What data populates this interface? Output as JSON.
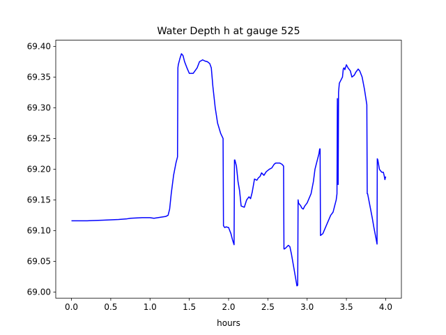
{
  "chart_data": {
    "type": "line",
    "title": "Water Depth h at gauge 525",
    "xlabel": "hours",
    "ylabel": "",
    "xlim": [
      -0.2,
      4.2
    ],
    "ylim": [
      68.99,
      69.41
    ],
    "xticks": [
      0.0,
      0.5,
      1.0,
      1.5,
      2.0,
      2.5,
      3.0,
      3.5,
      4.0
    ],
    "xtick_labels": [
      "0.0",
      "0.5",
      "1.0",
      "1.5",
      "2.0",
      "2.5",
      "3.0",
      "3.5",
      "4.0"
    ],
    "yticks": [
      69.0,
      69.05,
      69.1,
      69.15,
      69.2,
      69.25,
      69.3,
      69.35,
      69.4
    ],
    "ytick_labels": [
      "69.00",
      "69.05",
      "69.10",
      "69.15",
      "69.20",
      "69.25",
      "69.30",
      "69.35",
      "69.40"
    ],
    "grid": false,
    "legend": "none",
    "series": [
      {
        "color": "#0000ff",
        "x": [
          0.0,
          0.2,
          0.4,
          0.6,
          0.7,
          0.75,
          0.9,
          1.0,
          1.05,
          1.1,
          1.15,
          1.2,
          1.23,
          1.25,
          1.27,
          1.3,
          1.33,
          1.35,
          1.355,
          1.36,
          1.38,
          1.4,
          1.42,
          1.44,
          1.47,
          1.5,
          1.55,
          1.6,
          1.63,
          1.67,
          1.7,
          1.73,
          1.76,
          1.78,
          1.8,
          1.83,
          1.86,
          1.9,
          1.93,
          1.935,
          1.95,
          1.97,
          2.0,
          2.03,
          2.05,
          2.07,
          2.075,
          2.08,
          2.1,
          2.12,
          2.14,
          2.16,
          2.2,
          2.23,
          2.26,
          2.28,
          2.3,
          2.33,
          2.36,
          2.38,
          2.4,
          2.42,
          2.45,
          2.48,
          2.5,
          2.52,
          2.55,
          2.58,
          2.6,
          2.62,
          2.65,
          2.68,
          2.7,
          2.705,
          2.71,
          2.73,
          2.76,
          2.78,
          2.8,
          2.83,
          2.85,
          2.87,
          2.88,
          2.885,
          2.89,
          2.92,
          2.93,
          2.95,
          2.97,
          3.0,
          3.05,
          3.08,
          3.1,
          3.13,
          3.15,
          3.16,
          3.165,
          3.17,
          3.2,
          3.25,
          3.3,
          3.33,
          3.35,
          3.37,
          3.38,
          3.385,
          3.39,
          3.395,
          3.4,
          3.403,
          3.41,
          3.43,
          3.45,
          3.46,
          3.47,
          3.48,
          3.5,
          3.52,
          3.55,
          3.57,
          3.6,
          3.62,
          3.65,
          3.67,
          3.7,
          3.73,
          3.76,
          3.765,
          3.77,
          3.8,
          3.83,
          3.85,
          3.88,
          3.89,
          3.893,
          3.9,
          3.92,
          3.93,
          3.95,
          3.97,
          3.98,
          3.99,
          4.0
        ],
        "y": [
          69.116,
          69.116,
          69.117,
          69.118,
          69.119,
          69.12,
          69.121,
          69.121,
          69.12,
          69.121,
          69.122,
          69.123,
          69.125,
          69.135,
          69.16,
          69.19,
          69.21,
          69.22,
          69.365,
          69.37,
          69.38,
          69.388,
          69.385,
          69.375,
          69.365,
          69.356,
          69.356,
          69.365,
          69.375,
          69.378,
          69.376,
          69.375,
          69.372,
          69.365,
          69.335,
          69.3,
          69.275,
          69.258,
          69.25,
          69.108,
          69.105,
          69.106,
          69.105,
          69.095,
          69.085,
          69.077,
          69.215,
          69.215,
          69.205,
          69.18,
          69.165,
          69.14,
          69.138,
          69.15,
          69.155,
          69.152,
          69.162,
          69.184,
          69.182,
          69.186,
          69.188,
          69.194,
          69.19,
          69.196,
          69.198,
          69.2,
          69.202,
          69.208,
          69.21,
          69.21,
          69.21,
          69.208,
          69.205,
          69.07,
          69.07,
          69.072,
          69.076,
          69.074,
          69.062,
          69.04,
          69.025,
          69.01,
          69.011,
          69.15,
          69.145,
          69.14,
          69.137,
          69.135,
          69.14,
          69.145,
          69.16,
          69.18,
          69.2,
          69.215,
          69.225,
          69.233,
          69.233,
          69.092,
          69.095,
          69.11,
          69.125,
          69.13,
          69.14,
          69.15,
          69.16,
          69.315,
          69.18,
          69.175,
          69.325,
          69.33,
          69.34,
          69.345,
          69.35,
          69.363,
          69.365,
          69.362,
          69.37,
          69.365,
          69.36,
          69.35,
          69.353,
          69.358,
          69.363,
          69.36,
          69.35,
          69.33,
          69.305,
          69.16,
          69.16,
          69.14,
          69.12,
          69.105,
          69.085,
          69.078,
          69.217,
          69.215,
          69.2,
          69.198,
          69.195,
          69.195,
          69.19,
          69.183,
          69.188
        ]
      }
    ]
  }
}
